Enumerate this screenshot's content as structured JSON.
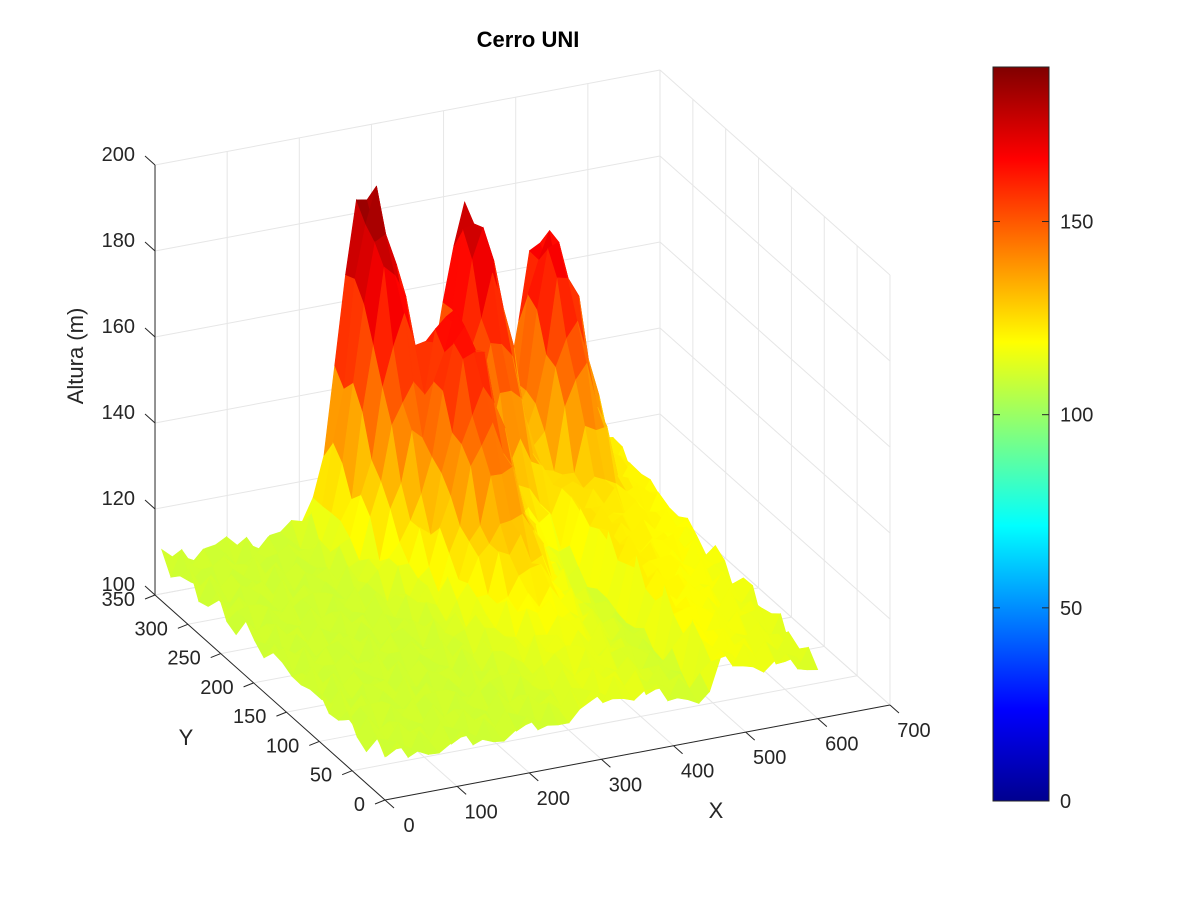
{
  "chart_data": {
    "type": "surface",
    "title": "Cerro UNI",
    "xlabel": "X",
    "ylabel": "Y",
    "zlabel": "Altura (m)",
    "xlim": [
      0,
      700
    ],
    "ylim": [
      0,
      350
    ],
    "zlim": [
      100,
      200
    ],
    "x_ticks": [
      0,
      100,
      200,
      300,
      400,
      500,
      600,
      700
    ],
    "y_ticks": [
      0,
      50,
      100,
      150,
      200,
      250,
      300,
      350
    ],
    "z_ticks": [
      100,
      120,
      140,
      160,
      180,
      200
    ],
    "colormap": "jet",
    "clim": [
      0,
      190
    ],
    "colorbar_ticks": [
      0,
      50,
      100,
      150
    ],
    "grid": true,
    "peaks": [
      {
        "x": 280,
        "y": 330,
        "z": 187
      },
      {
        "x": 420,
        "y": 330,
        "z": 180
      },
      {
        "x": 330,
        "y": 250,
        "z": 168
      },
      {
        "x": 520,
        "y": 320,
        "z": 172
      }
    ],
    "baseline_height": 110
  }
}
